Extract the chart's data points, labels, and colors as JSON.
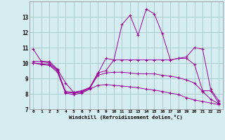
{
  "xlabel": "Windchill (Refroidissement éolien,°C)",
  "x": [
    0,
    1,
    2,
    3,
    4,
    5,
    6,
    7,
    8,
    9,
    10,
    11,
    12,
    13,
    14,
    15,
    16,
    17,
    18,
    19,
    20,
    21,
    22,
    23
  ],
  "line_max": [
    10.9,
    10.1,
    10.1,
    9.6,
    8.7,
    8.1,
    8.2,
    8.4,
    9.3,
    10.3,
    10.2,
    12.5,
    13.1,
    11.8,
    13.5,
    13.2,
    11.9,
    10.2,
    10.3,
    10.4,
    11.0,
    10.9,
    8.3,
    7.55
  ],
  "line_upper": [
    10.1,
    10.1,
    10.0,
    9.55,
    8.15,
    8.1,
    8.15,
    8.4,
    9.35,
    9.5,
    10.2,
    10.2,
    10.2,
    10.2,
    10.2,
    10.2,
    10.2,
    10.2,
    10.3,
    10.3,
    9.9,
    8.2,
    8.2,
    7.4
  ],
  "line_lower": [
    10.0,
    9.95,
    9.9,
    9.5,
    8.1,
    8.05,
    8.1,
    8.35,
    9.2,
    9.35,
    9.4,
    9.4,
    9.35,
    9.3,
    9.3,
    9.3,
    9.2,
    9.15,
    9.05,
    8.9,
    8.7,
    8.15,
    7.65,
    7.35
  ],
  "line_min": [
    10.0,
    9.9,
    9.85,
    9.4,
    8.05,
    7.95,
    8.05,
    8.3,
    8.55,
    8.6,
    8.55,
    8.5,
    8.45,
    8.4,
    8.3,
    8.25,
    8.15,
    8.05,
    7.95,
    7.75,
    7.6,
    7.5,
    7.4,
    7.3
  ],
  "line_color": "#990099",
  "bg_color": "#d5edf0",
  "grid_color": "#aacccc",
  "ylim": [
    7,
    14
  ],
  "yticks": [
    7,
    8,
    9,
    10,
    11,
    12,
    13
  ],
  "xticks": [
    0,
    1,
    2,
    3,
    4,
    5,
    6,
    7,
    8,
    9,
    10,
    11,
    12,
    13,
    14,
    15,
    16,
    17,
    18,
    19,
    20,
    21,
    22,
    23
  ]
}
